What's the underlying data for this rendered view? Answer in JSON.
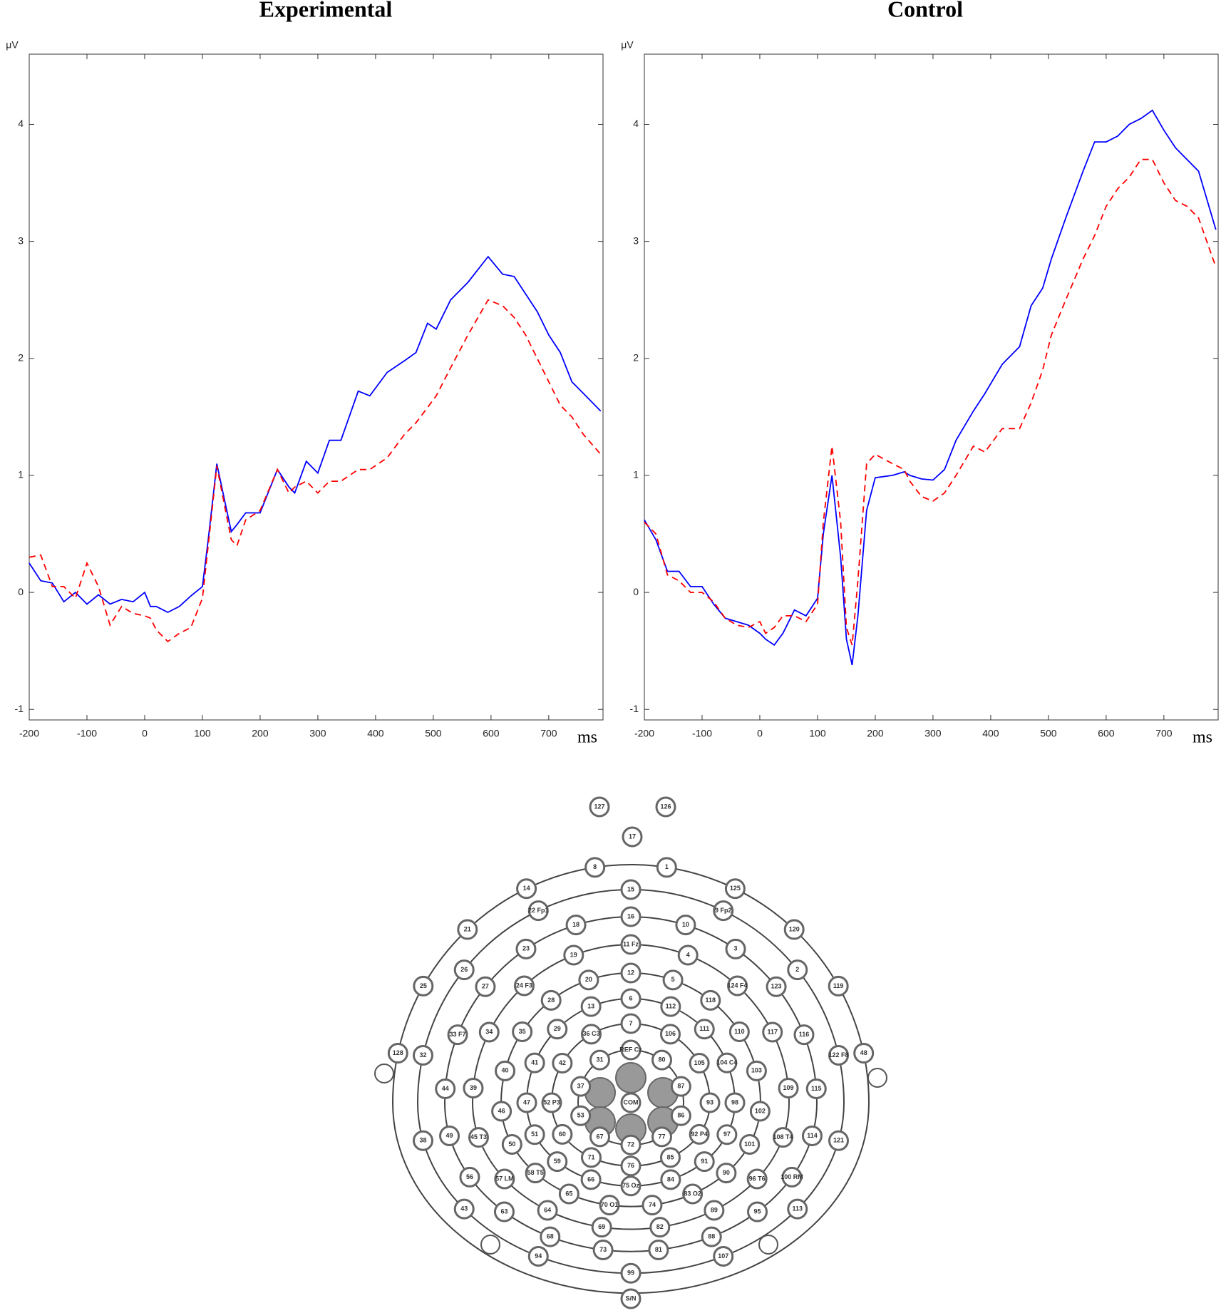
{
  "chart_data": [
    {
      "type": "line",
      "title": "Experimental",
      "xlabel": "ms",
      "ylabel": "μV",
      "x": [
        -200,
        -180,
        -160,
        -140,
        -120,
        -100,
        -80,
        -60,
        -40,
        -20,
        0,
        10,
        20,
        40,
        60,
        80,
        100,
        110,
        125,
        140,
        150,
        160,
        175,
        200,
        230,
        250,
        260,
        280,
        300,
        320,
        340,
        370,
        390,
        420,
        450,
        470,
        490,
        505,
        530,
        560,
        595,
        620,
        640,
        660,
        680,
        700,
        720,
        740,
        760,
        790
      ],
      "series": [
        {
          "color": "#0000ff",
          "linestyle": "solid",
          "values": [
            0.25,
            0.1,
            0.08,
            -0.08,
            0,
            -0.1,
            -0.02,
            -0.1,
            -0.06,
            -0.08,
            0,
            -0.12,
            -0.12,
            -0.17,
            -0.12,
            -0.03,
            0.05,
            0.45,
            1.1,
            0.75,
            0.52,
            0.58,
            0.68,
            0.68,
            1.05,
            0.9,
            0.85,
            1.12,
            1.02,
            1.3,
            1.3,
            1.72,
            1.68,
            1.88,
            1.98,
            2.05,
            2.3,
            2.25,
            2.5,
            2.65,
            2.87,
            2.72,
            2.7,
            2.55,
            2.4,
            2.2,
            2.05,
            1.8,
            1.7,
            1.55
          ]
        },
        {
          "color": "#ff0000",
          "linestyle": "dashed",
          "values": [
            0.3,
            0.32,
            0.05,
            0.05,
            -0.05,
            0.25,
            0.05,
            -0.28,
            -0.12,
            -0.18,
            -0.2,
            -0.22,
            -0.32,
            -0.42,
            -0.35,
            -0.3,
            -0.05,
            0.4,
            1.08,
            0.7,
            0.45,
            0.4,
            0.62,
            0.7,
            1.05,
            0.85,
            0.9,
            0.95,
            0.85,
            0.95,
            0.95,
            1.05,
            1.05,
            1.15,
            1.35,
            1.45,
            1.58,
            1.68,
            1.92,
            2.2,
            2.5,
            2.45,
            2.35,
            2.2,
            2.0,
            1.8,
            1.6,
            1.5,
            1.35,
            1.18
          ]
        }
      ],
      "xlim": [
        -200,
        794
      ],
      "ylim": [
        -1.09,
        4.6
      ],
      "xticks": [
        -200,
        -100,
        0,
        100,
        200,
        300,
        400,
        500,
        600,
        700
      ],
      "yticks": [
        -1,
        0,
        1,
        2,
        3,
        4
      ]
    },
    {
      "type": "line",
      "title": "Control",
      "xlabel": "ms",
      "ylabel": "μV",
      "x": [
        -200,
        -180,
        -160,
        -140,
        -120,
        -100,
        -80,
        -60,
        -40,
        -20,
        0,
        10,
        25,
        40,
        60,
        80,
        100,
        110,
        125,
        140,
        150,
        160,
        170,
        185,
        200,
        230,
        250,
        260,
        280,
        300,
        320,
        340,
        370,
        390,
        420,
        450,
        470,
        490,
        505,
        530,
        560,
        580,
        600,
        620,
        640,
        660,
        680,
        700,
        720,
        740,
        760,
        790
      ],
      "series": [
        {
          "color": "#0000ff",
          "linestyle": "solid",
          "values": [
            0.62,
            0.45,
            0.18,
            0.18,
            0.05,
            0.05,
            -0.1,
            -0.22,
            -0.25,
            -0.28,
            -0.35,
            -0.4,
            -0.45,
            -0.35,
            -0.15,
            -0.2,
            -0.05,
            0.5,
            1.0,
            0.3,
            -0.4,
            -0.62,
            -0.2,
            0.7,
            0.98,
            1.0,
            1.03,
            1.0,
            0.97,
            0.96,
            1.05,
            1.3,
            1.55,
            1.7,
            1.95,
            2.1,
            2.45,
            2.6,
            2.85,
            3.2,
            3.6,
            3.85,
            3.85,
            3.9,
            4.0,
            4.05,
            4.12,
            3.95,
            3.8,
            3.7,
            3.6,
            3.1
          ]
        },
        {
          "color": "#ff0000",
          "linestyle": "dashed",
          "values": [
            0.6,
            0.5,
            0.15,
            0.1,
            0,
            0,
            -0.08,
            -0.22,
            -0.28,
            -0.3,
            -0.25,
            -0.35,
            -0.3,
            -0.2,
            -0.2,
            -0.25,
            -0.1,
            0.6,
            1.25,
            0.6,
            -0.3,
            -0.45,
            0.1,
            1.1,
            1.18,
            1.1,
            1.05,
            0.95,
            0.82,
            0.78,
            0.85,
            1.0,
            1.25,
            1.2,
            1.4,
            1.4,
            1.62,
            1.9,
            2.2,
            2.5,
            2.85,
            3.05,
            3.3,
            3.45,
            3.55,
            3.7,
            3.7,
            3.5,
            3.35,
            3.3,
            3.2,
            2.78
          ]
        }
      ],
      "xlim": [
        -200,
        794
      ],
      "ylim": [
        -1.09,
        4.6
      ],
      "xticks": [
        -200,
        -100,
        0,
        100,
        200,
        300,
        400,
        500,
        600,
        700
      ],
      "yticks": [
        -1,
        0,
        1,
        2,
        3,
        4
      ]
    }
  ],
  "electrode_map": {
    "center": "COM",
    "rings": [
      [
        "REF Cz",
        "80",
        "87",
        "86",
        "77",
        "72",
        "67",
        "53",
        "37",
        "31"
      ],
      [
        "7",
        "106",
        "105",
        "93",
        "92 P4",
        "85",
        "76",
        "71",
        "60",
        "52 P3",
        "42",
        "36 C3"
      ],
      [
        "6",
        "112",
        "111",
        "104 C4",
        "98",
        "97",
        "91",
        "84",
        "75 Oz",
        "66",
        "59",
        "51",
        "47",
        "41",
        "29",
        "13"
      ],
      [
        "12",
        "5",
        "118",
        "110",
        "103",
        "102",
        "101",
        "90",
        "83 O2",
        "74",
        "70 O1",
        "65",
        "58 T5",
        "50",
        "46",
        "40",
        "35",
        "28",
        "20"
      ],
      [
        "11 Fz",
        "4",
        "124 F4",
        "117",
        "109",
        "108 T4",
        "96 T6",
        "89",
        "82",
        "69",
        "64",
        "57 LM",
        "45 T3",
        "39",
        "34",
        "24 F3",
        "19"
      ],
      [
        "16",
        "10",
        "3",
        "123",
        "116",
        "115",
        "114",
        "100 RM",
        "95",
        "88",
        "81",
        "73",
        "68",
        "63",
        "56",
        "49",
        "44",
        "33 F7",
        "27",
        "23",
        "18"
      ],
      [
        "15",
        "9 Fp2",
        "2",
        "122 F8",
        "121",
        "113",
        "107",
        "99",
        "94",
        "43",
        "38",
        "32",
        "26",
        "22 Fp1"
      ],
      [
        "128",
        "25",
        "21",
        "14",
        "8",
        "1",
        "125",
        "120",
        "119",
        "48"
      ]
    ],
    "extra": [
      "17",
      "127",
      "126",
      "S/N"
    ]
  }
}
